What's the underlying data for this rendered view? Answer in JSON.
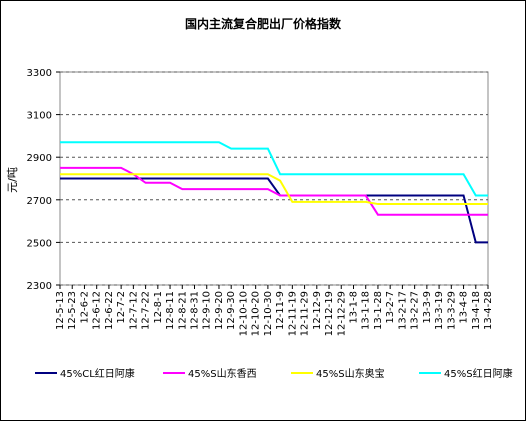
{
  "chart_data": {
    "type": "line",
    "title": "国内主流复合肥出厂价格指数",
    "y_label": "元/吨",
    "categories": [
      "12-5-13",
      "12-5-23",
      "12-6-2",
      "12-6-12",
      "12-6-22",
      "12-7-2",
      "12-7-12",
      "12-7-22",
      "12-8-1",
      "12-8-11",
      "12-8-21",
      "12-8-31",
      "12-9-10",
      "12-9-20",
      "12-9-30",
      "12-10-10",
      "12-10-20",
      "12-10-30",
      "12-11-9",
      "12-11-19",
      "12-11-29",
      "12-12-9",
      "12-12-19",
      "12-12-29",
      "13-1-8",
      "13-1-18",
      "13-1-28",
      "13-2-7",
      "13-2-17",
      "13-2-27",
      "13-3-9",
      "13-3-19",
      "13-3-29",
      "13-4-8",
      "13-4-18",
      "13-4-28"
    ],
    "series": [
      {
        "name": "45%CL红日阿康",
        "color": "#000080",
        "values": [
          2800,
          2800,
          2800,
          2800,
          2800,
          2800,
          2800,
          2800,
          2800,
          2800,
          2800,
          2800,
          2800,
          2800,
          2800,
          2800,
          2800,
          2800,
          2720,
          2720,
          2720,
          2720,
          2720,
          2720,
          2720,
          2720,
          2720,
          2720,
          2720,
          2720,
          2720,
          2720,
          2720,
          2720,
          2500,
          2500
        ]
      },
      {
        "name": "45%S山东香西",
        "color": "#ff00ff",
        "values": [
          2850,
          2850,
          2850,
          2850,
          2850,
          2850,
          2820,
          2780,
          2780,
          2780,
          2750,
          2750,
          2750,
          2750,
          2750,
          2750,
          2750,
          2750,
          2720,
          2720,
          2720,
          2720,
          2720,
          2720,
          2720,
          2720,
          2630,
          2630,
          2630,
          2630,
          2630,
          2630,
          2630,
          2630,
          2630,
          2630
        ]
      },
      {
        "name": "45%S山东奥宝",
        "color": "#ffff00",
        "values": [
          2820,
          2820,
          2820,
          2820,
          2820,
          2820,
          2820,
          2820,
          2820,
          2820,
          2820,
          2820,
          2820,
          2820,
          2820,
          2820,
          2820,
          2820,
          2790,
          2690,
          2690,
          2690,
          2690,
          2690,
          2690,
          2690,
          2680,
          2680,
          2680,
          2680,
          2680,
          2680,
          2680,
          2680,
          2680,
          2680
        ]
      },
      {
        "name": "45%S红日阿康",
        "color": "#00ffff",
        "values": [
          2970,
          2970,
          2970,
          2970,
          2970,
          2970,
          2970,
          2970,
          2970,
          2970,
          2970,
          2970,
          2970,
          2970,
          2940,
          2940,
          2940,
          2940,
          2820,
          2820,
          2820,
          2820,
          2820,
          2820,
          2820,
          2820,
          2820,
          2820,
          2820,
          2820,
          2820,
          2820,
          2820,
          2820,
          2720,
          2720
        ]
      }
    ],
    "ylim": [
      2300,
      3300
    ],
    "yticks": [
      2300,
      2500,
      2700,
      2900,
      3100,
      3300
    ],
    "grid": true
  }
}
